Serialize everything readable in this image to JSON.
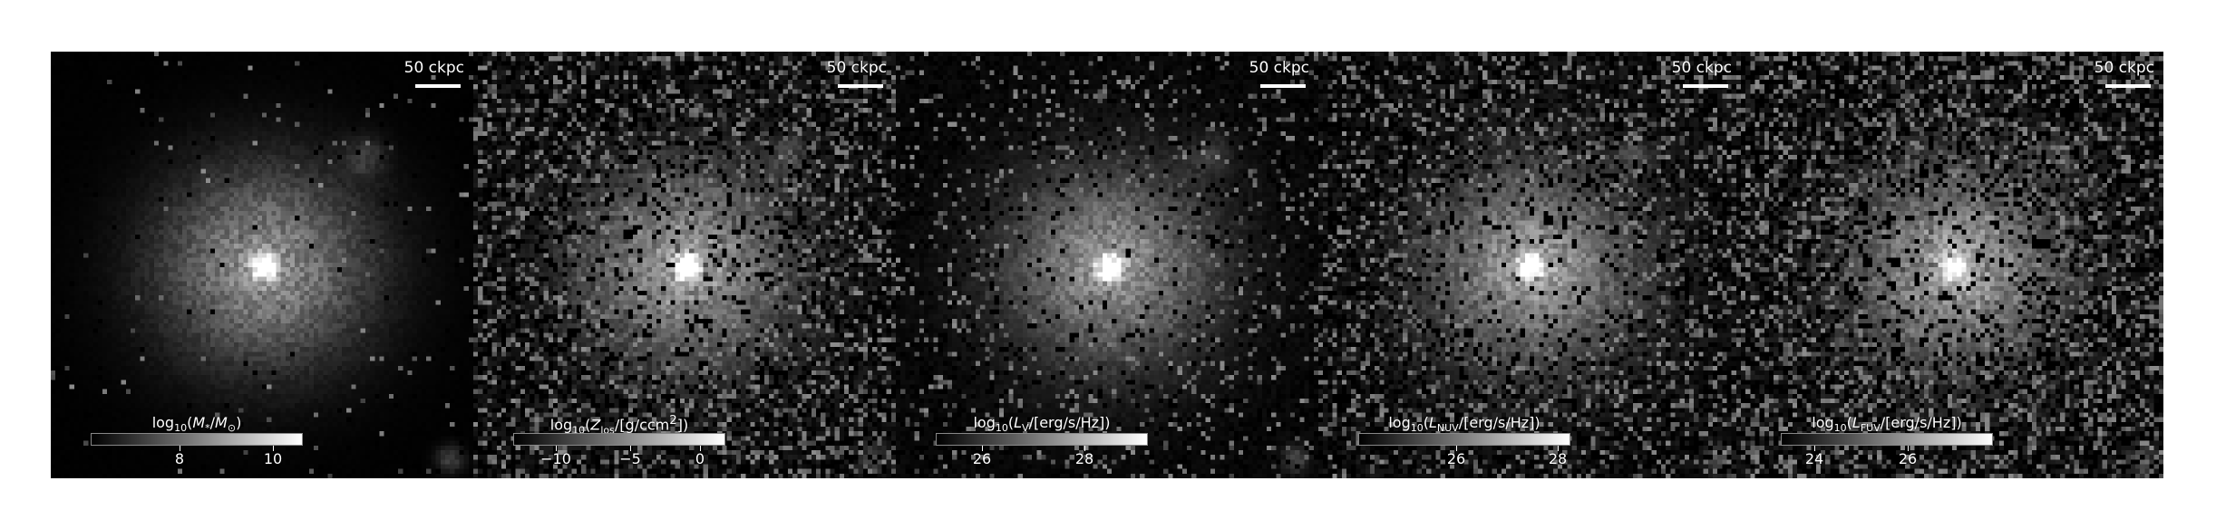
{
  "scale_bar_label": "50 ckpc",
  "panels": [
    {
      "id": "stellar-mass",
      "colorbar_label_html": "log<sub>10</sub>(<i>M</i><sub>*</sub>/<i>M</i><sub>⊙</sub>)",
      "colorbar_label_text": "log10(M*/M⊙)",
      "tick_labels": [
        "8",
        "10"
      ],
      "tick_fractions": [
        0.42,
        0.86
      ],
      "noise_level": 0.03,
      "core_brightness": 1.0
    },
    {
      "id": "metallicity",
      "colorbar_label_html": "log<sub>10</sub>(<i>Z</i><sub>los</sub>/[g/ccm<sup>2</sup>])",
      "colorbar_label_text": "log10(Zlos/[g/ccm2])",
      "tick_labels": [
        "−10",
        "−5",
        "0"
      ],
      "tick_fractions": [
        0.2,
        0.55,
        0.88
      ],
      "noise_level": 0.45,
      "core_brightness": 0.95
    },
    {
      "id": "v-band",
      "colorbar_label_html": "log<sub>10</sub>(<i>L</i><sub>V</sub>/[erg/s/Hz])",
      "colorbar_label_text": "log10(LV/[erg/s/Hz])",
      "tick_labels": [
        "26",
        "28"
      ],
      "tick_fractions": [
        0.22,
        0.7
      ],
      "noise_level": 0.2,
      "core_brightness": 0.95
    },
    {
      "id": "nuv",
      "colorbar_label_html": "log<sub>10</sub>(<i>L</i><sub>NUV</sub>/[erg/s/Hz])",
      "colorbar_label_text": "log10(LNUV/[erg/s/Hz])",
      "tick_labels": [
        "26",
        "28"
      ],
      "tick_fractions": [
        0.46,
        0.94
      ],
      "noise_level": 0.42,
      "core_brightness": 0.85
    },
    {
      "id": "fuv",
      "colorbar_label_html": "log<sub>10</sub>(<i>L</i><sub>FUV</sub>/[erg/s/Hz])",
      "colorbar_label_text": "log10(LFUV/[erg/s/Hz])",
      "tick_labels": [
        "24",
        "26"
      ],
      "tick_fractions": [
        0.16,
        0.6
      ],
      "noise_level": 0.55,
      "core_brightness": 0.8
    }
  ]
}
